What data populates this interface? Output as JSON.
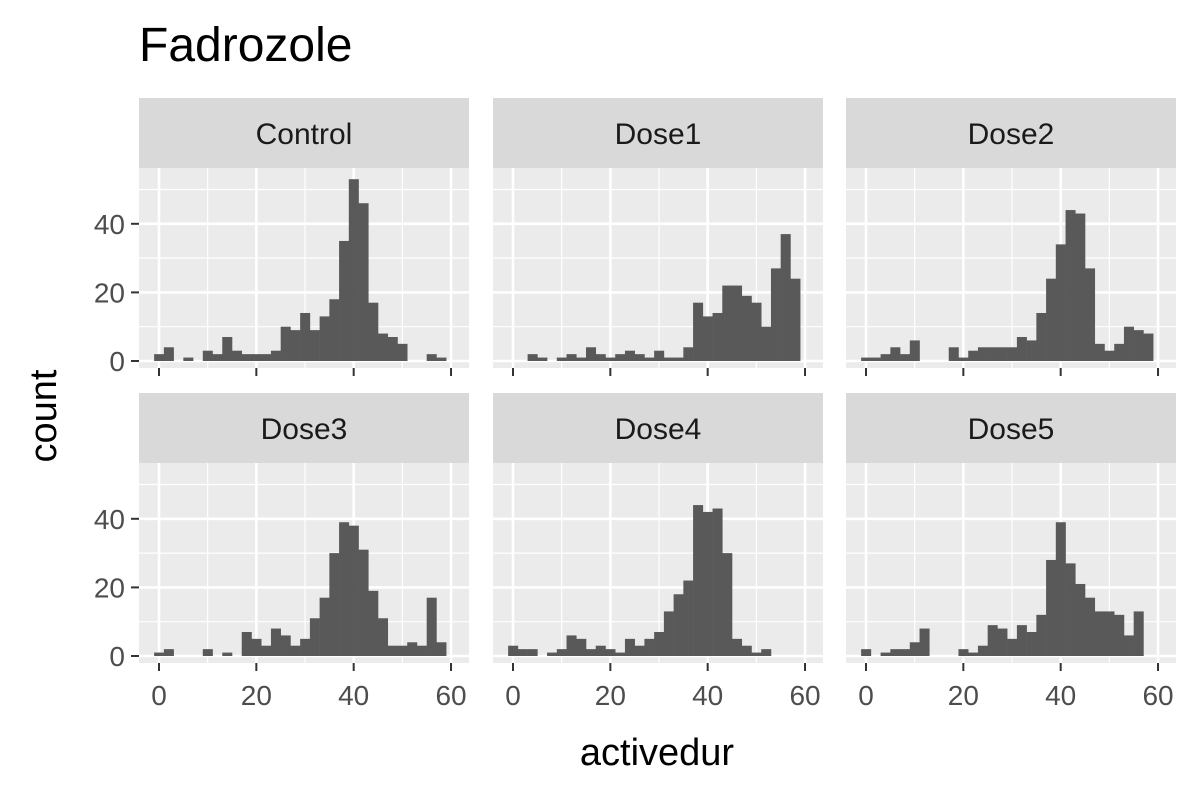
{
  "chart_data": {
    "type": "bar",
    "title": "Fadrozole",
    "xlabel": "activedur",
    "ylabel": "count",
    "xlim": [
      -2,
      62
    ],
    "ylim": [
      0,
      55
    ],
    "x_ticks": [
      0,
      20,
      40,
      60
    ],
    "y_ticks": [
      0,
      20,
      40
    ],
    "grid": true,
    "bin_width": 2,
    "bin_starts": [
      0,
      2,
      4,
      6,
      8,
      10,
      12,
      14,
      16,
      18,
      20,
      22,
      24,
      26,
      28,
      30,
      32,
      34,
      36,
      38,
      40,
      42,
      44,
      46,
      48,
      50,
      52,
      54,
      56,
      58
    ],
    "colors": {
      "bar": "#595959",
      "panel_bg": "#ebebeb",
      "strip_bg": "#d9d9d9",
      "grid": "#ffffff",
      "axis_text": "#4d4d4d",
      "tick": "#333333"
    },
    "panels": [
      {
        "name": "Control",
        "values": [
          2,
          4,
          0,
          1,
          0,
          3,
          2,
          7,
          3,
          2,
          2,
          2,
          3,
          10,
          9,
          14,
          9,
          13,
          18,
          35,
          53,
          46,
          17,
          8,
          7,
          5,
          0,
          0,
          2,
          1
        ]
      },
      {
        "name": "Dose1",
        "values": [
          0,
          0,
          2,
          1,
          0,
          1,
          2,
          1,
          4,
          2,
          1,
          2,
          3,
          2,
          1,
          3,
          1,
          1,
          4,
          17,
          13,
          14,
          22,
          22,
          19,
          17,
          10,
          27,
          37,
          24
        ]
      },
      {
        "name": "Dose2",
        "values": [
          1,
          1,
          2,
          4,
          2,
          6,
          0,
          0,
          0,
          4,
          1,
          3,
          4,
          4,
          4,
          4,
          7,
          6,
          14,
          24,
          34,
          44,
          43,
          27,
          5,
          3,
          5,
          10,
          9,
          8
        ]
      },
      {
        "name": "Dose3",
        "values": [
          1,
          2,
          0,
          0,
          0,
          2,
          0,
          1,
          0,
          7,
          5,
          3,
          8,
          6,
          3,
          5,
          11,
          17,
          30,
          39,
          38,
          31,
          19,
          11,
          3,
          3,
          4,
          3,
          17,
          4
        ]
      },
      {
        "name": "Dose4",
        "values": [
          3,
          2,
          2,
          0,
          1,
          2,
          6,
          5,
          2,
          3,
          2,
          1,
          5,
          3,
          5,
          7,
          13,
          18,
          22,
          44,
          42,
          43,
          30,
          5,
          3,
          1,
          2,
          0,
          0,
          0
        ]
      },
      {
        "name": "Dose5",
        "values": [
          2,
          0,
          1,
          2,
          2,
          4,
          8,
          0,
          0,
          0,
          2,
          1,
          3,
          9,
          8,
          5,
          9,
          7,
          12,
          28,
          39,
          27,
          21,
          17,
          13,
          13,
          12,
          6,
          13,
          0
        ]
      }
    ]
  }
}
